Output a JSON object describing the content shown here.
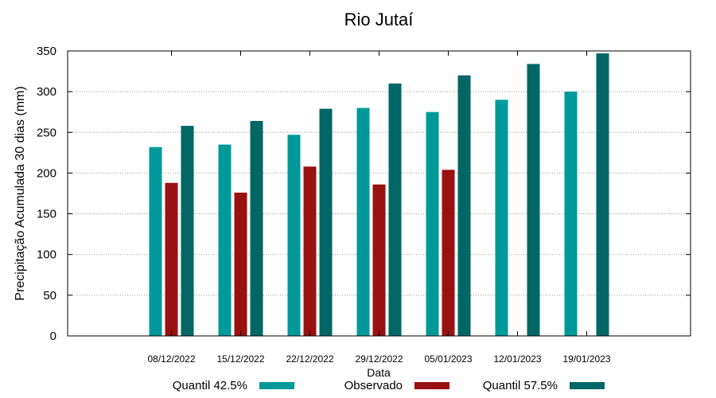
{
  "chart_data": {
    "type": "bar",
    "title": "Rio Jutaí",
    "xlabel": "Data",
    "ylabel": "Precipitação Acumulada 30 dias (mm)",
    "ylim": [
      0,
      350
    ],
    "yticks": [
      0,
      50,
      100,
      150,
      200,
      250,
      300,
      350
    ],
    "grid": true,
    "legend_position": "bottom",
    "categories": [
      "08/12/2022",
      "15/12/2022",
      "22/12/2022",
      "29/12/2022",
      "05/01/2023",
      "12/01/2023",
      "19/01/2023"
    ],
    "series": [
      {
        "name": "Quantil 42.5%",
        "color": "#009999",
        "values": [
          232,
          235,
          247,
          280,
          275,
          290,
          300
        ]
      },
      {
        "name": "Observado",
        "color": "#991111",
        "values": [
          188,
          176,
          208,
          186,
          204,
          null,
          null
        ]
      },
      {
        "name": "Quantil 57.5%",
        "color": "#006666",
        "values": [
          258,
          264,
          279,
          310,
          320,
          334,
          347
        ]
      }
    ]
  }
}
